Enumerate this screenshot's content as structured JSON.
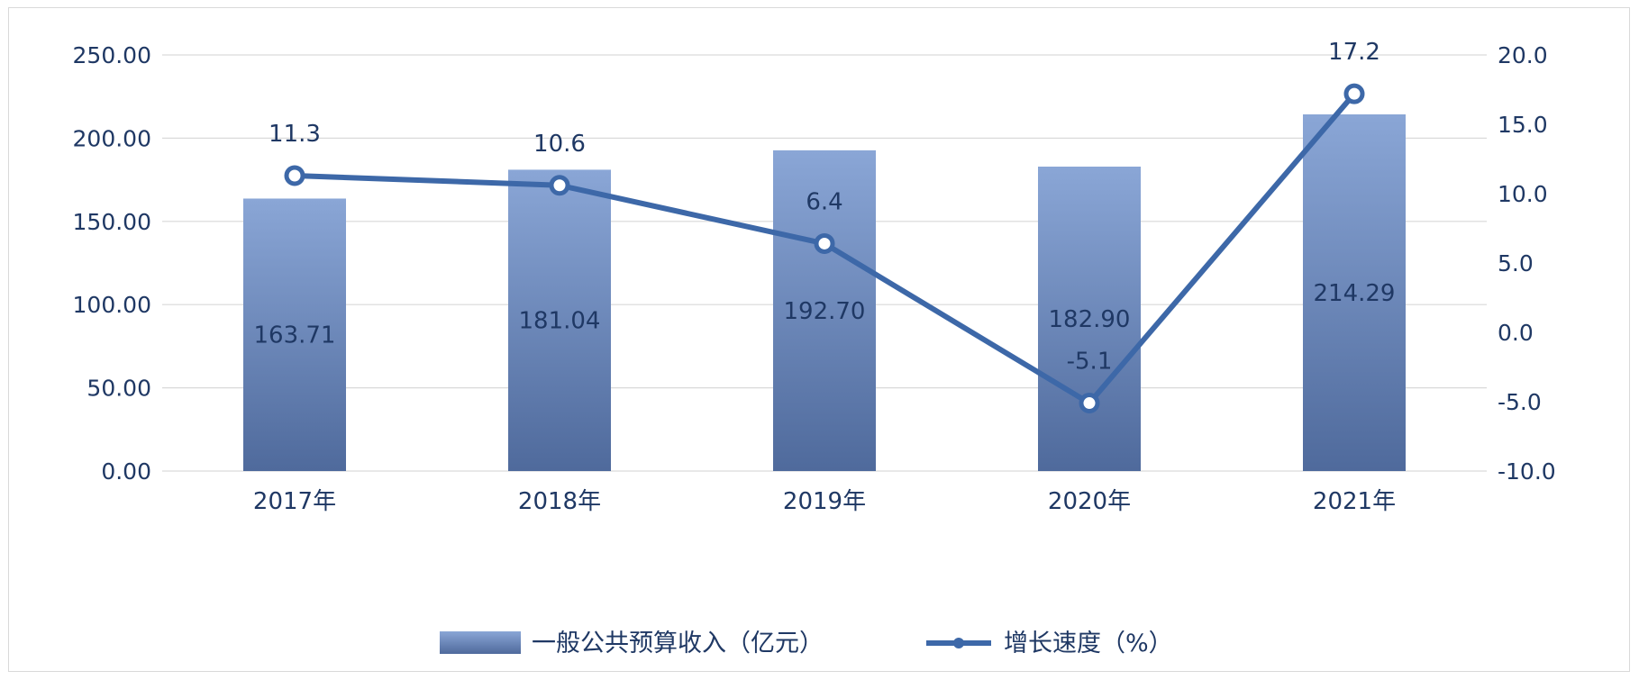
{
  "chart_data": {
    "type": "bar",
    "categories": [
      "2017年",
      "2018年",
      "2019年",
      "2020年",
      "2021年"
    ],
    "series": [
      {
        "name": "一般公共预算收入（亿元）",
        "type": "bar",
        "axis": "left",
        "values": [
          163.71,
          181.04,
          192.7,
          182.9,
          214.29
        ],
        "labels": [
          "163.71",
          "181.04",
          "192.70",
          "182.90",
          "214.29"
        ]
      },
      {
        "name": "增长速度（%）",
        "type": "line",
        "axis": "right",
        "values": [
          11.3,
          10.6,
          6.4,
          -5.1,
          17.2
        ],
        "labels": [
          "11.3",
          "10.6",
          "6.4",
          "-5.1",
          "17.2"
        ]
      }
    ],
    "y_left": {
      "min": 0,
      "max": 250,
      "step": 50,
      "ticks": [
        "0.00",
        "50.00",
        "100.00",
        "150.00",
        "200.00",
        "250.00"
      ]
    },
    "y_right": {
      "min": -10,
      "max": 20,
      "step": 5,
      "ticks": [
        "-10.0",
        "-5.0",
        "0.0",
        "5.0",
        "10.0",
        "15.0",
        "20.0"
      ]
    },
    "grid": true,
    "legend_position": "bottom",
    "colors": {
      "bar_top": "#8aa6d6",
      "bar_bottom": "#4f6a9c",
      "line": "#3d68a8",
      "marker_fill": "#ffffff",
      "text": "#1f3864"
    }
  }
}
